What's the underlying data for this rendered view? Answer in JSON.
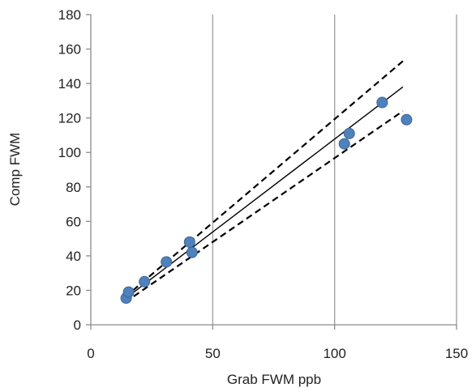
{
  "chart_data": {
    "type": "scatter",
    "title": "",
    "xlabel": "Grab FWM ppb",
    "ylabel": "Comp FWM",
    "xlim": [
      0,
      150
    ],
    "ylim": [
      0,
      180
    ],
    "x_ticks": [
      0,
      50,
      100,
      150
    ],
    "y_ticks": [
      0,
      20,
      40,
      60,
      80,
      100,
      120,
      140,
      160,
      180
    ],
    "x_tick_labels": [
      "0",
      "50",
      "100",
      "150"
    ],
    "y_tick_labels": [
      "0",
      "20",
      "40",
      "60",
      "80",
      "100",
      "120",
      "140",
      "160",
      "180"
    ],
    "grid": "vertical major gridlines",
    "legend": "none",
    "points": [
      {
        "x": 14.5,
        "y": 15.5
      },
      {
        "x": 15.5,
        "y": 19
      },
      {
        "x": 22,
        "y": 25
      },
      {
        "x": 31,
        "y": 36.5
      },
      {
        "x": 40.5,
        "y": 48
      },
      {
        "x": 41.5,
        "y": 42
      },
      {
        "x": 104,
        "y": 105
      },
      {
        "x": 106,
        "y": 111
      },
      {
        "x": 119.5,
        "y": 129
      },
      {
        "x": 129.5,
        "y": 119
      }
    ],
    "lines": [
      {
        "style": "solid",
        "x": [
          14,
          128
        ],
        "y": [
          15,
          138
        ]
      },
      {
        "style": "dashed",
        "x": [
          14,
          128
        ],
        "y": [
          16,
          153
        ]
      },
      {
        "style": "dashed",
        "x": [
          14,
          128
        ],
        "y": [
          13,
          124
        ]
      }
    ],
    "colors": {
      "point_fill": "#4F81BD",
      "point_stroke": "#3A6595",
      "line": "#000000",
      "grid": "#9e9e9e",
      "axis": "#8c8c8c"
    }
  }
}
